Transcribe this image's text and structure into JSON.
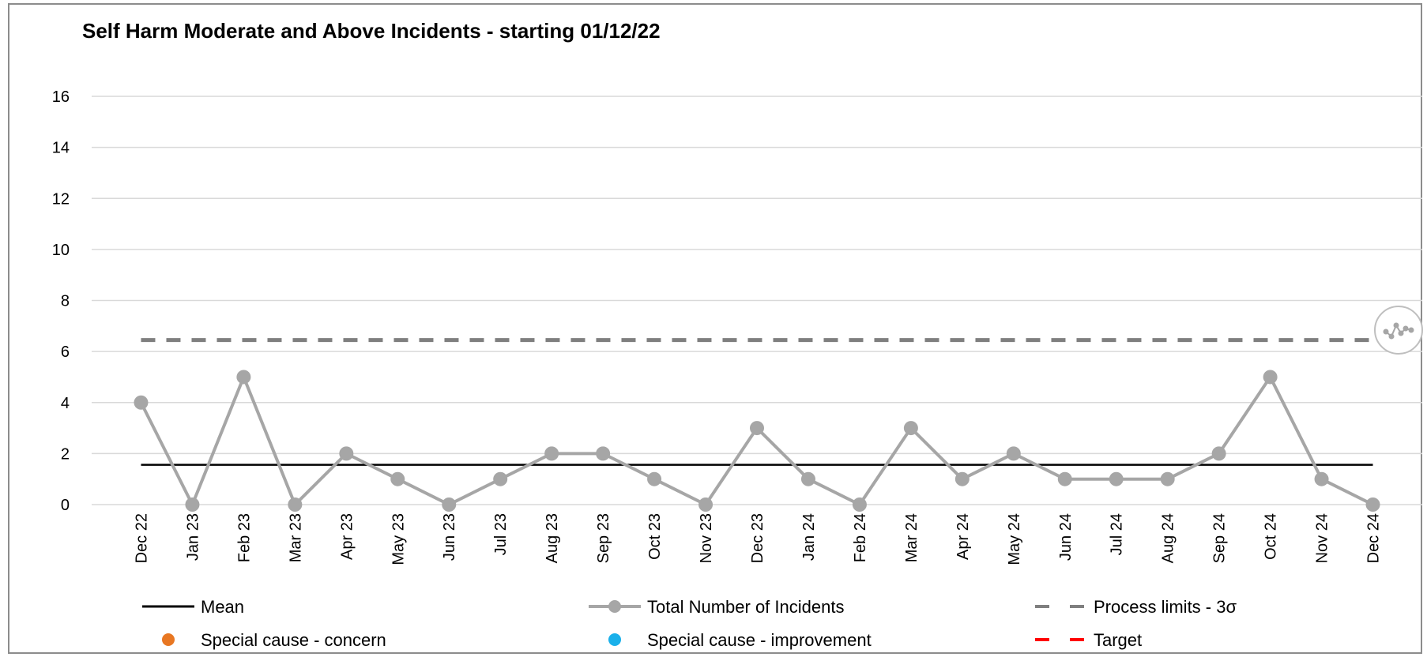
{
  "chart_data": {
    "type": "line",
    "title": "Self Harm Moderate and Above Incidents - starting 01/12/22",
    "xlabel": "",
    "ylabel": "",
    "ylim": [
      0,
      16
    ],
    "yticks": [
      0,
      2,
      4,
      6,
      8,
      10,
      12,
      14,
      16
    ],
    "grid": true,
    "categories": [
      "Dec 22",
      "Jan 23",
      "Feb 23",
      "Mar 23",
      "Apr 23",
      "May 23",
      "Jun 23",
      "Jul 23",
      "Aug 23",
      "Sep 23",
      "Oct 23",
      "Nov 23",
      "Dec 23",
      "Jan 24",
      "Feb 24",
      "Mar 24",
      "Apr 24",
      "May 24",
      "Jun 24",
      "Jul 24",
      "Aug 24",
      "Sep 24",
      "Oct 24",
      "Nov 24",
      "Dec 24"
    ],
    "series": [
      {
        "name": "Total Number of Incidents",
        "color": "#a6a6a6",
        "values": [
          4,
          0,
          5,
          0,
          2,
          1,
          0,
          1,
          2,
          2,
          1,
          0,
          3,
          1,
          0,
          3,
          1,
          2,
          1,
          1,
          1,
          2,
          5,
          1,
          0
        ]
      },
      {
        "name": "Mean",
        "color": "#000000",
        "values": [
          1.56,
          1.56,
          1.56,
          1.56,
          1.56,
          1.56,
          1.56,
          1.56,
          1.56,
          1.56,
          1.56,
          1.56,
          1.56,
          1.56,
          1.56,
          1.56,
          1.56,
          1.56,
          1.56,
          1.56,
          1.56,
          1.56,
          1.56,
          1.56,
          1.56
        ]
      },
      {
        "name": "Process limits - 3σ",
        "color": "#7f7f7f",
        "values": [
          6.45,
          6.45,
          6.45,
          6.45,
          6.45,
          6.45,
          6.45,
          6.45,
          6.45,
          6.45,
          6.45,
          6.45,
          6.45,
          6.45,
          6.45,
          6.45,
          6.45,
          6.45,
          6.45,
          6.45,
          6.45,
          6.45,
          6.45,
          6.45,
          6.45
        ]
      }
    ],
    "legend": {
      "placement": "bottom",
      "items": [
        {
          "label": "Mean",
          "kind": "line",
          "color": "#000000"
        },
        {
          "label": "Total Number of Incidents",
          "kind": "line-marker",
          "color": "#a6a6a6"
        },
        {
          "label": "Process limits - 3σ",
          "kind": "dash",
          "color": "#7f7f7f"
        },
        {
          "label": "Special cause - concern",
          "kind": "dot",
          "color": "#e87722"
        },
        {
          "label": "Special cause  - improvement",
          "kind": "dot",
          "color": "#1ab0ea"
        },
        {
          "label": "Target",
          "kind": "dash",
          "color": "#ff0000"
        }
      ]
    },
    "icon": "variation-common-cause-icon"
  }
}
